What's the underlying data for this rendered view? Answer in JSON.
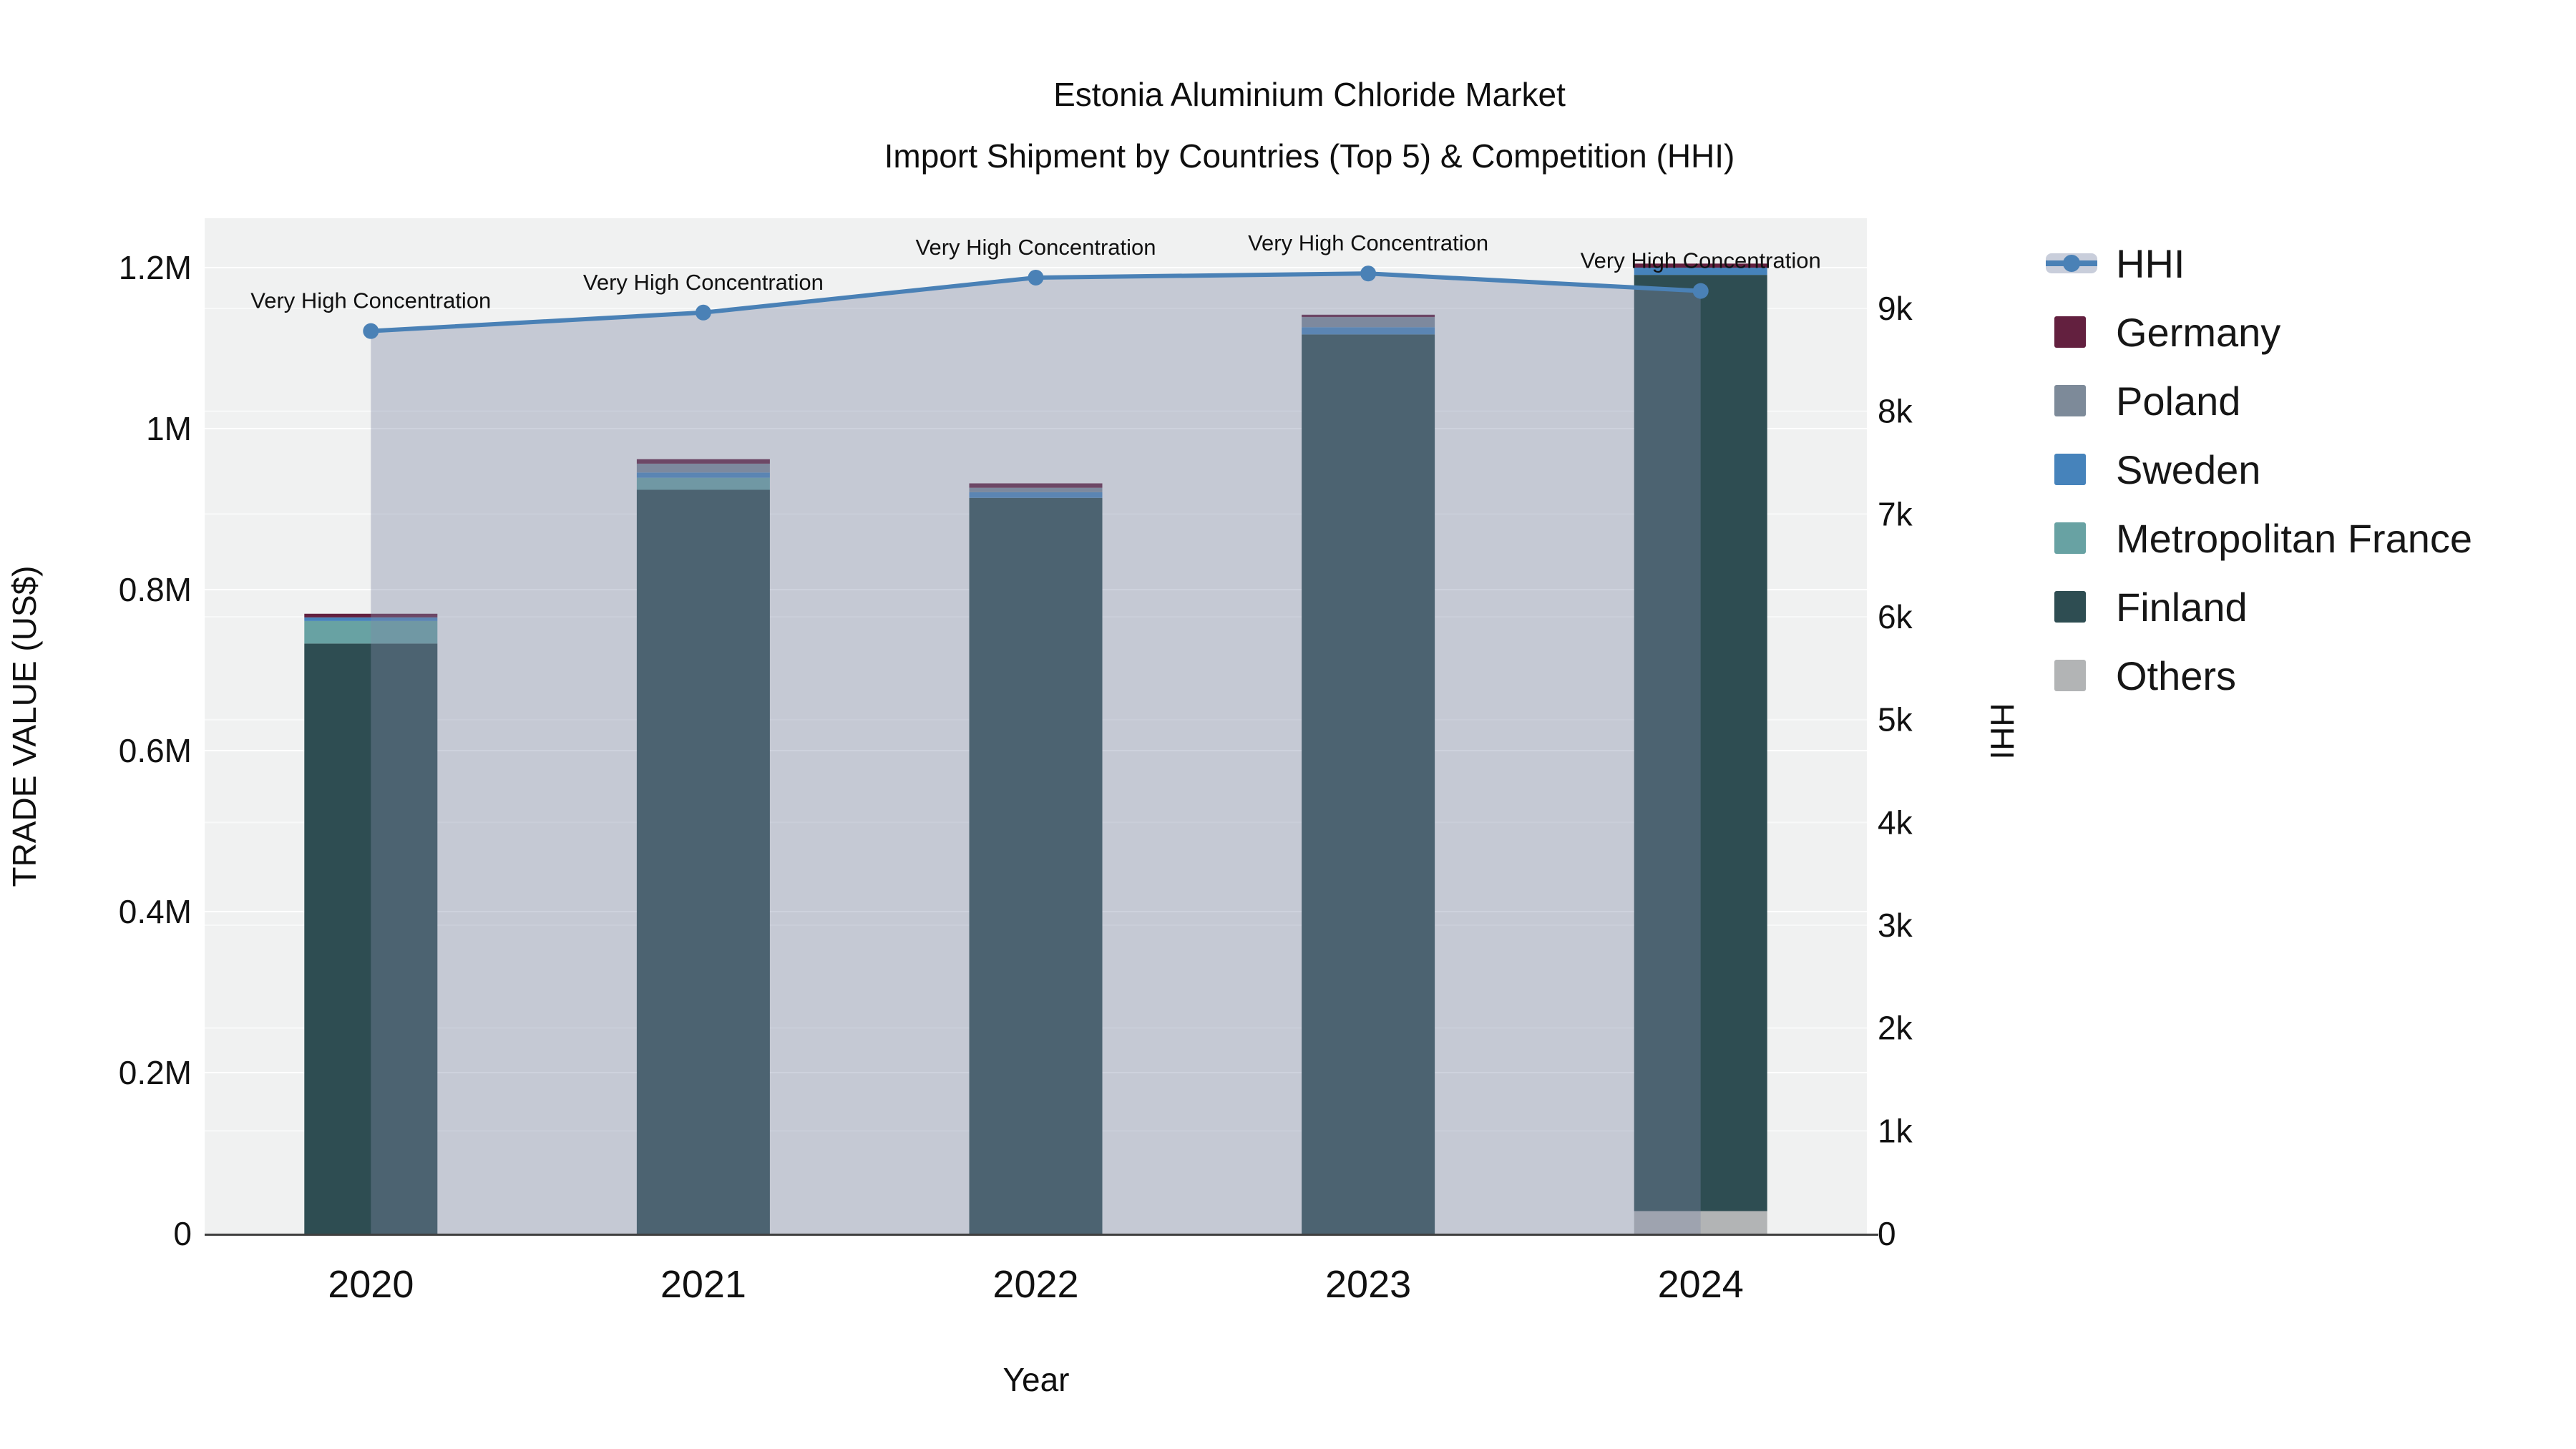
{
  "title": {
    "line1": "Estonia Aluminium Chloride Market",
    "line2": "Import Shipment by Countries (Top 5) & Competition (HHI)"
  },
  "axis_titles": {
    "left": "TRADE VALUE (US$)",
    "right": "HHI",
    "x": "Year"
  },
  "legend": {
    "items": [
      {
        "label": "HHI",
        "type": "line",
        "color": "#4a81b6"
      },
      {
        "label": "Germany",
        "type": "swatch",
        "color": "#63203f"
      },
      {
        "label": "Poland",
        "type": "swatch",
        "color": "#7d8a99"
      },
      {
        "label": "Sweden",
        "type": "swatch",
        "color": "#4683bb"
      },
      {
        "label": "Metropolitan France",
        "type": "swatch",
        "color": "#68a2a3"
      },
      {
        "label": "Finland",
        "type": "swatch",
        "color": "#2e4d52"
      },
      {
        "label": "Others",
        "type": "swatch",
        "color": "#b2b4b5"
      }
    ]
  },
  "chart_data": {
    "type": "bar+line",
    "title": "Estonia Aluminium Chloride Market — Import Shipment by Countries (Top 5) & Competition (HHI)",
    "xlabel": "Year",
    "ylabel_left": "TRADE VALUE (US$)",
    "ylabel_right": "HHI",
    "categories": [
      "2020",
      "2021",
      "2022",
      "2023",
      "2024"
    ],
    "bar_series": [
      {
        "name": "Others",
        "color": "#b2b4b5",
        "values": [
          0,
          0,
          0,
          0,
          28000
        ]
      },
      {
        "name": "Finland",
        "color": "#2e4d52",
        "values": [
          733000,
          924000,
          914000,
          1117000,
          1163000
        ]
      },
      {
        "name": "Metropolitan France",
        "color": "#68a2a3",
        "values": [
          28000,
          15000,
          0,
          0,
          0
        ]
      },
      {
        "name": "Sweden",
        "color": "#4683bb",
        "values": [
          4500,
          6500,
          7000,
          9000,
          9000
        ]
      },
      {
        "name": "Poland",
        "color": "#7d8a99",
        "values": [
          0,
          11000,
          5500,
          12500,
          0
        ]
      },
      {
        "name": "Germany",
        "color": "#63203f",
        "values": [
          4500,
          5500,
          5500,
          3000,
          5000
        ]
      }
    ],
    "bar_totals": [
      770000,
      962000,
      932000,
      1141500,
      1205000
    ],
    "line_series": {
      "name": "HHI",
      "values": [
        8780,
        8960,
        9300,
        9340,
        9170
      ],
      "color": "#4a81b6",
      "area_color": "rgba(125,136,166,0.38)"
    },
    "annotations": [
      "Very High Concentration",
      "Very High Concentration",
      "Very High Concentration",
      "Very High Concentration",
      "Very High Concentration"
    ],
    "y_left": {
      "range": [
        0,
        1262000
      ],
      "ticks": [
        {
          "label": "0",
          "value": 0
        },
        {
          "label": "0.2M",
          "value": 200000
        },
        {
          "label": "0.4M",
          "value": 400000
        },
        {
          "label": "0.6M",
          "value": 600000
        },
        {
          "label": "0.8M",
          "value": 800000
        },
        {
          "label": "1M",
          "value": 1000000
        },
        {
          "label": "1.2M",
          "value": 1200000
        }
      ]
    },
    "y_right": {
      "range": [
        0,
        9880
      ],
      "ticks": [
        {
          "label": "0",
          "value": 0
        },
        {
          "label": "1k",
          "value": 1000
        },
        {
          "label": "2k",
          "value": 2000
        },
        {
          "label": "3k",
          "value": 3000
        },
        {
          "label": "4k",
          "value": 4000
        },
        {
          "label": "5k",
          "value": 5000
        },
        {
          "label": "6k",
          "value": 6000
        },
        {
          "label": "7k",
          "value": 7000
        },
        {
          "label": "8k",
          "value": 8000
        },
        {
          "label": "9k",
          "value": 9000
        }
      ]
    },
    "grid": true,
    "legend_position": "top-right",
    "plot_background": "#f0f1f1"
  }
}
